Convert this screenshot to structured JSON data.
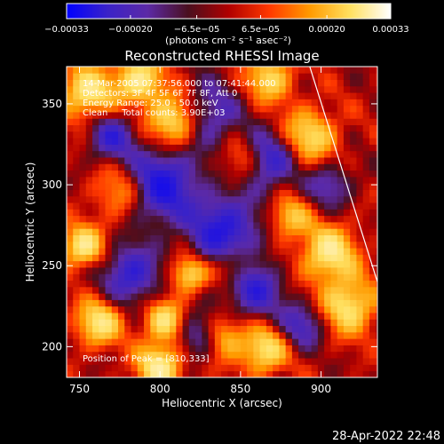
{
  "chart_data": {
    "type": "heatmap",
    "title": "Reconstructed RHESSI Image",
    "xlabel": "Heliocentric X (arcsec)",
    "ylabel": "Heliocentric Y (arcsec)",
    "xlim": [
      742,
      935
    ],
    "ylim": [
      181,
      373
    ],
    "x_ticks": [
      750,
      800,
      850,
      900
    ],
    "x_tick_labels": [
      "750",
      "800",
      "850",
      "900"
    ],
    "y_ticks": [
      200,
      250,
      300,
      350
    ],
    "y_tick_labels": [
      "200",
      "250",
      "300",
      "350"
    ],
    "colorbar": {
      "label": "(photons cm⁻² s⁻¹ asec⁻²)",
      "range": [
        -0.00033,
        0.00033
      ],
      "ticks": [
        -0.00033,
        -0.0002,
        -6.5e-05,
        6.5e-05,
        0.0002,
        0.00033
      ],
      "tick_labels": [
        "−0.00033",
        "−0.00020",
        "−6.5e−05",
        "6.5e−05",
        "0.00020",
        "0.00033"
      ],
      "colors": [
        "#0000ff",
        "#3a22c8",
        "#5c2aa6",
        "#4a0f1f",
        "#b00000",
        "#ff3800",
        "#ff9a00",
        "#ffe060",
        "#ffffff"
      ]
    },
    "annotations": [
      "14-Mar-2005 07:37:56.000 to 07:41:44.000",
      "Detectors: 3F 4F 5F 6F 7F 8F, Att 0",
      "Energy Range: 25.0 - 50.0 keV",
      "Clean     Total counts: 3.90E+03"
    ],
    "peak_label": "Position of Peak = [810,333]",
    "peak": [
      810,
      333
    ],
    "limb_line": [
      [
        893,
        373
      ],
      [
        935,
        240
      ]
    ],
    "hot_spots": [
      {
        "x": 810,
        "y": 340,
        "amp": 1.0,
        "w": 12
      },
      {
        "x": 787,
        "y": 365,
        "amp": 0.85,
        "w": 10
      },
      {
        "x": 755,
        "y": 357,
        "amp": 0.8,
        "w": 12
      },
      {
        "x": 777,
        "y": 296,
        "amp": 0.6,
        "w": 12
      },
      {
        "x": 752,
        "y": 262,
        "amp": 0.85,
        "w": 9
      },
      {
        "x": 762,
        "y": 215,
        "amp": 0.8,
        "w": 10
      },
      {
        "x": 818,
        "y": 245,
        "amp": 0.75,
        "w": 8
      },
      {
        "x": 803,
        "y": 216,
        "amp": 0.75,
        "w": 9
      },
      {
        "x": 838,
        "y": 207,
        "amp": 0.7,
        "w": 10
      },
      {
        "x": 893,
        "y": 330,
        "amp": 0.7,
        "w": 12
      },
      {
        "x": 905,
        "y": 258,
        "amp": 0.85,
        "w": 12
      },
      {
        "x": 917,
        "y": 225,
        "amp": 0.8,
        "w": 12
      },
      {
        "x": 852,
        "y": 315,
        "amp": 0.55,
        "w": 10
      },
      {
        "x": 865,
        "y": 198,
        "amp": 0.8,
        "w": 10
      },
      {
        "x": 800,
        "y": 188,
        "amp": 0.9,
        "w": 10
      },
      {
        "x": 868,
        "y": 366,
        "amp": 0.7,
        "w": 10
      },
      {
        "x": 880,
        "y": 280,
        "amp": 0.6,
        "w": 9
      },
      {
        "x": 845,
        "y": 250,
        "amp": 0.5,
        "w": 8
      }
    ],
    "cold_spots": [
      {
        "x": 800,
        "y": 300,
        "amp": 1.0,
        "w": 16
      },
      {
        "x": 840,
        "y": 272,
        "amp": 0.9,
        "w": 15
      },
      {
        "x": 866,
        "y": 315,
        "amp": 0.85,
        "w": 12
      },
      {
        "x": 828,
        "y": 343,
        "amp": 0.7,
        "w": 14
      },
      {
        "x": 782,
        "y": 245,
        "amp": 0.8,
        "w": 12
      },
      {
        "x": 858,
        "y": 235,
        "amp": 0.75,
        "w": 12
      },
      {
        "x": 825,
        "y": 207,
        "amp": 0.7,
        "w": 10
      },
      {
        "x": 888,
        "y": 213,
        "amp": 0.6,
        "w": 10
      },
      {
        "x": 770,
        "y": 330,
        "amp": 0.7,
        "w": 10
      },
      {
        "x": 905,
        "y": 300,
        "amp": 0.5,
        "w": 10
      }
    ]
  },
  "footer": {
    "timestamp": "28-Apr-2022 22:48"
  }
}
